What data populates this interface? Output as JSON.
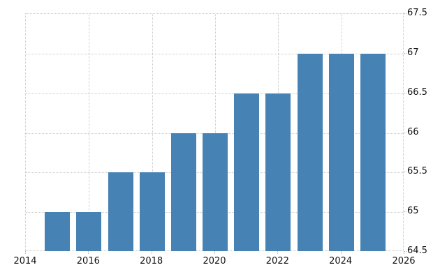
{
  "chart_data": {
    "type": "bar",
    "x": [
      2015,
      2016,
      2017,
      2018,
      2019,
      2020,
      2021,
      2022,
      2023,
      2024,
      2025
    ],
    "values": [
      65,
      65,
      65.5,
      65.5,
      66,
      66,
      66.5,
      66.5,
      67,
      67,
      67
    ],
    "title": "",
    "xlabel": "",
    "ylabel": "",
    "xlim": [
      2014,
      2026
    ],
    "ylim": [
      64.5,
      67.5
    ],
    "x_tick_labels": [
      "2014",
      "2016",
      "2018",
      "2020",
      "2022",
      "2024",
      "2026"
    ],
    "x_tick_values": [
      2014,
      2016,
      2018,
      2020,
      2022,
      2024,
      2026
    ],
    "y_tick_labels": [
      "64.5",
      "65",
      "65.5",
      "66",
      "66.5",
      "67",
      "67.5"
    ],
    "y_tick_values": [
      64.5,
      65,
      65.5,
      66,
      66.5,
      67,
      67.5
    ],
    "y_axis_side": "right",
    "grid": true,
    "legend": false,
    "bar_color": "#4682b4",
    "grid_color": "#c9c9c9",
    "label_color": "#111111",
    "background_color": "#ffffff"
  }
}
